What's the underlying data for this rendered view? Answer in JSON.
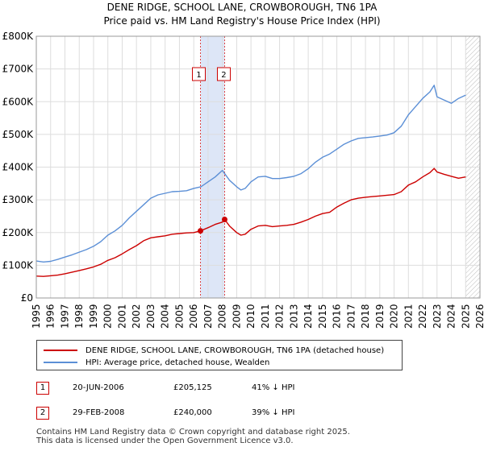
{
  "chart_data": {
    "type": "line",
    "title": "DENE RIDGE, SCHOOL LANE, CROWBOROUGH, TN6 1PA",
    "subtitle": "Price paid vs. HM Land Registry's House Price Index (HPI)",
    "xlabel": "",
    "ylabel": "",
    "xlim": [
      1995,
      2026
    ],
    "ylim": [
      0,
      800000
    ],
    "y_ticks": [
      0,
      100000,
      200000,
      300000,
      400000,
      500000,
      600000,
      700000,
      800000
    ],
    "y_tick_labels": [
      "£0",
      "£100K",
      "£200K",
      "£300K",
      "£400K",
      "£500K",
      "£600K",
      "£700K",
      "£800K"
    ],
    "x_ticks": [
      1995,
      1996,
      1997,
      1998,
      1999,
      2000,
      2001,
      2002,
      2003,
      2004,
      2005,
      2006,
      2007,
      2008,
      2009,
      2010,
      2011,
      2012,
      2013,
      2014,
      2015,
      2016,
      2017,
      2018,
      2019,
      2020,
      2021,
      2022,
      2023,
      2024,
      2025,
      2026
    ],
    "x_tick_labels": [
      "1995",
      "1996",
      "1997",
      "1998",
      "1999",
      "2000",
      "2001",
      "2002",
      "2003",
      "2004",
      "2005",
      "2006",
      "2007",
      "2008",
      "2009",
      "2010",
      "2011",
      "2012",
      "2013",
      "2014",
      "2015",
      "2016",
      "2017",
      "2018",
      "2019",
      "2020",
      "2021",
      "2022",
      "2023",
      "2024",
      "2025",
      "2026"
    ],
    "grid": true,
    "shaded_period": [
      2006.47,
      2008.16
    ],
    "hatched_after": 2025.0,
    "colors": {
      "red": "#cc0000",
      "blue": "#5b8fd6",
      "shade": "#dde6f7",
      "grid": "#dddddd"
    },
    "series": [
      {
        "name": "DENE RIDGE, SCHOOL LANE, CROWBOROUGH, TN6 1PA (detached house)",
        "color": "#cc0000",
        "x": [
          1995.0,
          1995.5,
          1996.0,
          1996.5,
          1997.0,
          1997.5,
          1998.0,
          1998.5,
          1999.0,
          1999.5,
          2000.0,
          2000.5,
          2001.0,
          2001.5,
          2002.0,
          2002.5,
          2003.0,
          2003.5,
          2004.0,
          2004.5,
          2005.0,
          2005.5,
          2006.0,
          2006.47,
          2007.0,
          2007.5,
          2008.0,
          2008.16,
          2008.5,
          2009.0,
          2009.3,
          2009.6,
          2010.0,
          2010.5,
          2011.0,
          2011.5,
          2012.0,
          2012.5,
          2013.0,
          2013.5,
          2014.0,
          2014.5,
          2015.0,
          2015.5,
          2016.0,
          2016.5,
          2017.0,
          2017.5,
          2018.0,
          2018.5,
          2019.0,
          2019.5,
          2020.0,
          2020.5,
          2021.0,
          2021.5,
          2022.0,
          2022.5,
          2022.8,
          2023.0,
          2023.5,
          2024.0,
          2024.5,
          2025.0
        ],
        "values": [
          67000,
          66000,
          68000,
          70000,
          74000,
          79000,
          84000,
          89000,
          95000,
          103000,
          115000,
          123000,
          135000,
          148000,
          160000,
          175000,
          184000,
          187000,
          190000,
          195000,
          197000,
          199000,
          200000,
          205125,
          215000,
          225000,
          232000,
          240000,
          220000,
          200000,
          192000,
          195000,
          210000,
          220000,
          222000,
          218000,
          220000,
          222000,
          225000,
          232000,
          240000,
          250000,
          258000,
          262000,
          278000,
          290000,
          300000,
          305000,
          308000,
          310000,
          312000,
          314000,
          316000,
          325000,
          345000,
          355000,
          370000,
          383000,
          396000,
          385000,
          378000,
          372000,
          366000,
          370000
        ]
      },
      {
        "name": "HPI: Average price, detached house, Wealden",
        "color": "#5b8fd6",
        "x": [
          1995.0,
          1995.5,
          1996.0,
          1996.5,
          1997.0,
          1997.5,
          1998.0,
          1998.5,
          1999.0,
          1999.5,
          2000.0,
          2000.5,
          2001.0,
          2001.5,
          2002.0,
          2002.5,
          2003.0,
          2003.5,
          2004.0,
          2004.5,
          2005.0,
          2005.5,
          2006.0,
          2006.5,
          2007.0,
          2007.5,
          2008.0,
          2008.5,
          2009.0,
          2009.3,
          2009.6,
          2010.0,
          2010.5,
          2011.0,
          2011.5,
          2012.0,
          2012.5,
          2013.0,
          2013.5,
          2014.0,
          2014.5,
          2015.0,
          2015.5,
          2016.0,
          2016.5,
          2017.0,
          2017.5,
          2018.0,
          2018.5,
          2019.0,
          2019.5,
          2020.0,
          2020.5,
          2021.0,
          2021.5,
          2022.0,
          2022.5,
          2022.8,
          2023.0,
          2023.5,
          2024.0,
          2024.5,
          2025.0
        ],
        "values": [
          113000,
          110000,
          112000,
          118000,
          125000,
          132000,
          140000,
          148000,
          158000,
          172000,
          192000,
          205000,
          222000,
          245000,
          265000,
          285000,
          305000,
          315000,
          320000,
          325000,
          326000,
          328000,
          335000,
          340000,
          355000,
          370000,
          390000,
          360000,
          340000,
          330000,
          335000,
          355000,
          370000,
          372000,
          365000,
          365000,
          368000,
          372000,
          380000,
          395000,
          415000,
          430000,
          440000,
          455000,
          470000,
          480000,
          488000,
          490000,
          492000,
          495000,
          498000,
          505000,
          525000,
          560000,
          585000,
          610000,
          630000,
          650000,
          615000,
          605000,
          595000,
          610000,
          620000
        ]
      }
    ],
    "annotations": [
      {
        "label": "1",
        "x": 2006.47,
        "y": 205125
      },
      {
        "label": "2",
        "x": 2008.16,
        "y": 240000
      }
    ]
  },
  "legend": {
    "red_label": "DENE RIDGE, SCHOOL LANE, CROWBOROUGH, TN6 1PA (detached house)",
    "blue_label": "HPI: Average price, detached house, Wealden"
  },
  "transactions": [
    {
      "id": "1",
      "date": "20-JUN-2006",
      "price": "£205,125",
      "delta": "41% ↓ HPI"
    },
    {
      "id": "2",
      "date": "29-FEB-2008",
      "price": "£240,000",
      "delta": "39% ↓ HPI"
    }
  ],
  "footer": {
    "line1": "Contains HM Land Registry data © Crown copyright and database right 2025.",
    "line2": "This data is licensed under the Open Government Licence v3.0."
  }
}
